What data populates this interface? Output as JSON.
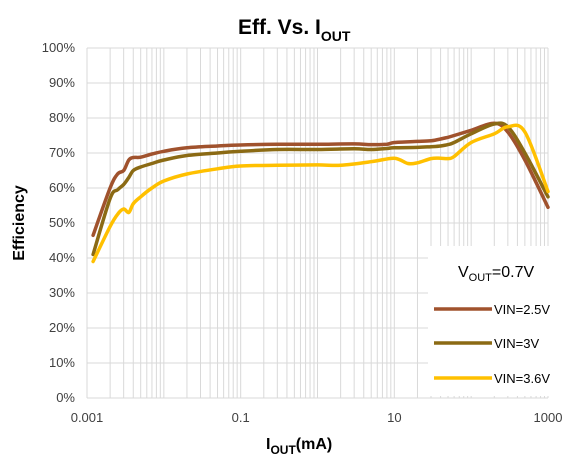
{
  "chart_data": {
    "type": "line",
    "title": {
      "main": "Eff. Vs. I",
      "sub": "OUT"
    },
    "xlabel": {
      "main": "I",
      "sub": "OUT",
      "suffix": "(mA)"
    },
    "ylabel": "Efficiency",
    "x_scale": "log",
    "xlim": [
      0.001,
      1000
    ],
    "ylim": [
      0,
      100
    ],
    "x_ticks": [
      "0.001",
      "0.1",
      "10",
      "1000"
    ],
    "y_ticks": [
      "0%",
      "10%",
      "20%",
      "30%",
      "40%",
      "50%",
      "60%",
      "70%",
      "80%",
      "90%",
      "100%"
    ],
    "grid": true,
    "legend_position": "lower-right",
    "annotation": {
      "main": "V",
      "sub": "OUT",
      "suffix": "=0.7V"
    },
    "series": [
      {
        "name": "VIN=2.5V",
        "color": "#A0522D",
        "x": [
          0.0012,
          0.002,
          0.0025,
          0.003,
          0.0035,
          0.004,
          0.005,
          0.007,
          0.01,
          0.02,
          0.05,
          0.1,
          0.3,
          1,
          3,
          5,
          8,
          10,
          20,
          30,
          40,
          50,
          60,
          100,
          200,
          300,
          500,
          1000
        ],
        "y": [
          46.5,
          60,
          64,
          65,
          68,
          68.7,
          68.8,
          69.7,
          70.5,
          71.5,
          72,
          72.3,
          72.5,
          72.5,
          72.6,
          72.4,
          72.5,
          73,
          73.3,
          73.5,
          74,
          74.5,
          75,
          76.5,
          78.5,
          76,
          68,
          54.5
        ]
      },
      {
        "name": "VIN=3V",
        "color": "#8B6A14",
        "x": [
          0.0012,
          0.002,
          0.0025,
          0.003,
          0.0035,
          0.004,
          0.005,
          0.007,
          0.01,
          0.02,
          0.05,
          0.1,
          0.3,
          1,
          3,
          5,
          8,
          10,
          20,
          30,
          40,
          50,
          60,
          100,
          200,
          300,
          500,
          1000
        ],
        "y": [
          41,
          57,
          59.5,
          61,
          63,
          65,
          66,
          67,
          68,
          69.3,
          70,
          70.5,
          71,
          71,
          71.2,
          71,
          71.3,
          71.5,
          71.6,
          71.8,
          72,
          72.4,
          73,
          75.5,
          78.3,
          77.5,
          70,
          57.5
        ]
      },
      {
        "name": "VIN=3.6V",
        "color": "#FFC000",
        "x": [
          0.0012,
          0.002,
          0.0025,
          0.003,
          0.0035,
          0.004,
          0.005,
          0.007,
          0.01,
          0.02,
          0.05,
          0.1,
          0.3,
          1,
          2,
          5,
          10,
          15,
          20,
          30,
          40,
          50,
          60,
          100,
          200,
          300,
          500,
          1000
        ],
        "y": [
          39,
          49,
          52.5,
          54,
          53,
          55.5,
          57.5,
          60,
          62,
          64,
          65.5,
          66.3,
          66.5,
          66.6,
          66.5,
          67.5,
          68.5,
          67,
          67.2,
          68.4,
          68.5,
          68.4,
          69,
          73,
          75.5,
          77.5,
          76,
          59
        ]
      }
    ]
  }
}
